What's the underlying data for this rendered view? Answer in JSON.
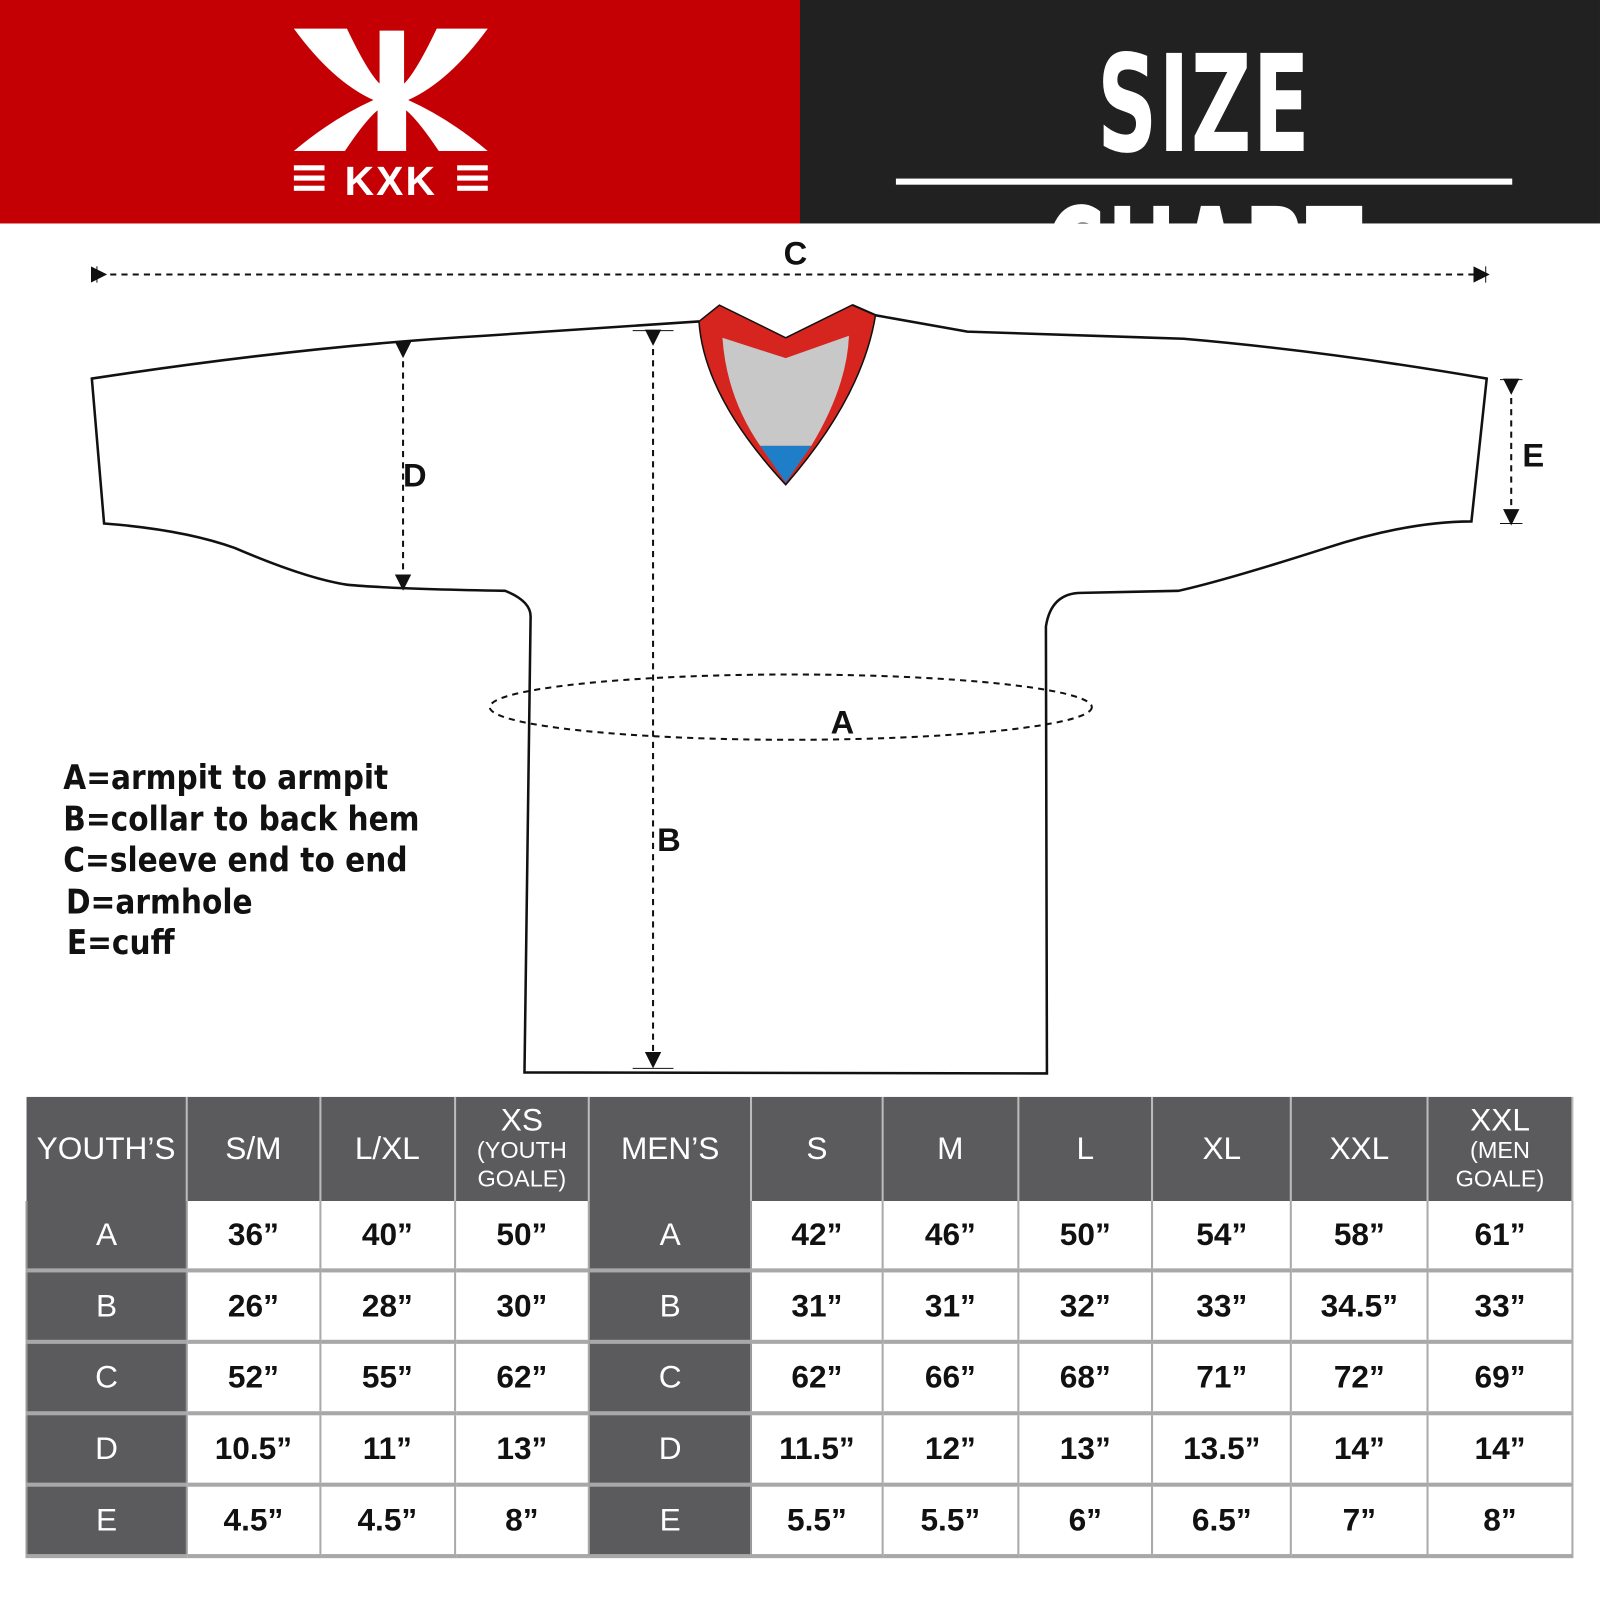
{
  "header": {
    "brand": "KXK",
    "title": "SIZE CHART"
  },
  "colors": {
    "brand_red": "#c40005",
    "header_dark": "#212121",
    "table_header": "#5b5b5d",
    "collar_red": "#d6251f",
    "collar_gray": "#c8c8c8",
    "collar_blue": "#1e7fc8"
  },
  "diagram_labels": {
    "A": "A",
    "B": "B",
    "C": "C",
    "D": "D",
    "E": "E"
  },
  "legend": [
    "A=armpit to armpit",
    "B=collar to back hem",
    "C=sleeve end to end",
    "D=armhole",
    "E=cuff"
  ],
  "table": {
    "youth_header": "YOUTH’S",
    "youth_sizes": [
      {
        "label": "S/M",
        "sub": ""
      },
      {
        "label": "L/XL",
        "sub": ""
      },
      {
        "label": "XS",
        "sub": "(YOUTH GOALE)"
      }
    ],
    "men_header": "MEN’S",
    "men_sizes": [
      {
        "label": "S",
        "sub": ""
      },
      {
        "label": "M",
        "sub": ""
      },
      {
        "label": "L",
        "sub": ""
      },
      {
        "label": "XL",
        "sub": ""
      },
      {
        "label": "XXL",
        "sub": ""
      },
      {
        "label": "XXL",
        "sub": "(MEN GOALE)"
      }
    ],
    "rows": [
      {
        "key": "A",
        "youth": [
          "36”",
          "40”",
          "50”"
        ],
        "men": [
          "42”",
          "46”",
          "50”",
          "54”",
          "58”",
          "61”"
        ]
      },
      {
        "key": "B",
        "youth": [
          "26”",
          "28”",
          "30”"
        ],
        "men": [
          "31”",
          "31”",
          "32”",
          "33”",
          "34.5”",
          "33”"
        ]
      },
      {
        "key": "C",
        "youth": [
          "52”",
          "55”",
          "62”"
        ],
        "men": [
          "62”",
          "66”",
          "68”",
          "71”",
          "72”",
          "69”"
        ]
      },
      {
        "key": "D",
        "youth": [
          "10.5”",
          "11”",
          "13”"
        ],
        "men": [
          "11.5”",
          "12”",
          "13”",
          "13.5”",
          "14”",
          "14”"
        ]
      },
      {
        "key": "E",
        "youth": [
          "4.5”",
          "4.5”",
          "8”"
        ],
        "men": [
          "5.5”",
          "5.5”",
          "6”",
          "6.5”",
          "7”",
          "8”"
        ]
      }
    ]
  }
}
